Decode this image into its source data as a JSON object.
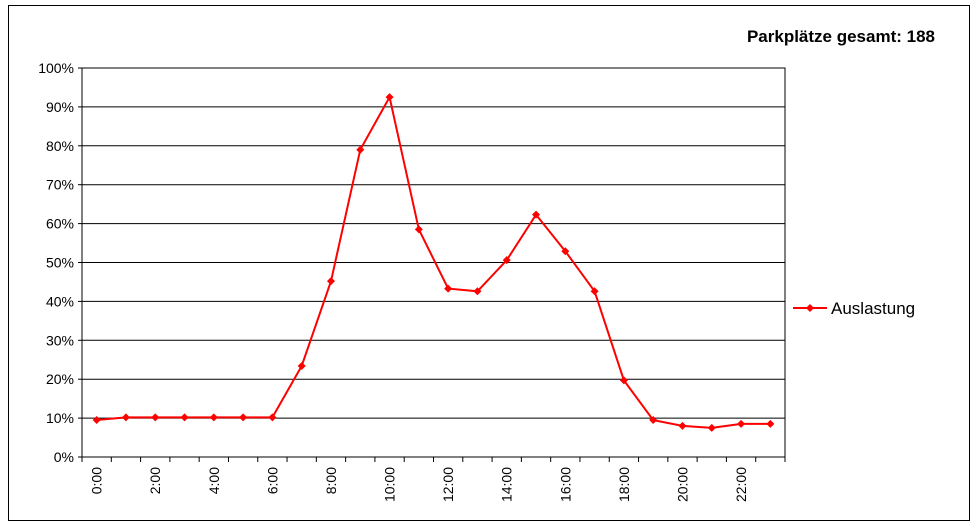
{
  "chart_data": {
    "type": "line",
    "title": "Parkplätze gesamt: 188",
    "categories": [
      "0:00",
      null,
      "2:00",
      null,
      "4:00",
      null,
      "6:00",
      null,
      "8:00",
      null,
      "10:00",
      null,
      "12:00",
      null,
      "14:00",
      null,
      "16:00",
      null,
      "18:00",
      null,
      "20:00",
      null,
      "22:00",
      null
    ],
    "series": [
      {
        "name": "Auslastung",
        "color": "#ff0000",
        "values": [
          9.5,
          10.2,
          10.2,
          10.2,
          10.2,
          10.2,
          10.2,
          23.4,
          45.2,
          79,
          92.5,
          58.5,
          43.3,
          42.6,
          50.6,
          62.3,
          52.9,
          42.6,
          19.7,
          9.5,
          8,
          7.5,
          8.5,
          8.5
        ]
      }
    ],
    "ylim": [
      0,
      100
    ],
    "yticks": [
      {
        "value": 0,
        "label": "0%"
      },
      {
        "value": 10,
        "label": "10%"
      },
      {
        "value": 20,
        "label": "20%"
      },
      {
        "value": 30,
        "label": "30%"
      },
      {
        "value": 40,
        "label": "40%"
      },
      {
        "value": 50,
        "label": "50%"
      },
      {
        "value": 60,
        "label": "60%"
      },
      {
        "value": 70,
        "label": "70%"
      },
      {
        "value": 80,
        "label": "80%"
      },
      {
        "value": 90,
        "label": "90%"
      },
      {
        "value": 100,
        "label": "100%"
      }
    ],
    "grid": true,
    "legend": "right"
  }
}
